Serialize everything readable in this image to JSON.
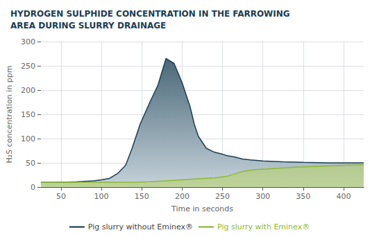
{
  "chart_data": {
    "type": "area",
    "title": "HYDROGEN SULPHIDE CONCENTRATION IN THE FARROWING\nAREA DURING SLURRY DRAINAGE",
    "xlabel": "Time in seconds",
    "ylabel": "H₂S concentration in ppm",
    "xlim": [
      25,
      425
    ],
    "ylim": [
      0,
      300
    ],
    "xticks": [
      50,
      100,
      150,
      200,
      250,
      300,
      350,
      400
    ],
    "yticks": [
      0,
      50,
      100,
      150,
      200,
      250,
      300
    ],
    "grid": true,
    "legend": "bottom",
    "series": [
      {
        "name": "Pig slurry without Eminex®",
        "color": "#1c3d52",
        "x": [
          25,
          55,
          70,
          90,
          100,
          110,
          120,
          130,
          138,
          148,
          160,
          170,
          180,
          190,
          200,
          210,
          215,
          220,
          230,
          240,
          250,
          255,
          265,
          275,
          285,
          300,
          325,
          350,
          380,
          410,
          425
        ],
        "values": [
          10,
          10,
          11,
          13,
          15,
          18,
          28,
          45,
          80,
          130,
          175,
          210,
          265,
          255,
          215,
          165,
          130,
          105,
          80,
          72,
          68,
          65,
          62,
          58,
          56,
          54,
          52,
          51,
          50,
          50,
          50
        ]
      },
      {
        "name": "Pig slurry with Eminex®",
        "color": "#8db832",
        "x": [
          25,
          55,
          70,
          90,
          100,
          120,
          140,
          160,
          180,
          200,
          220,
          240,
          255,
          265,
          275,
          290,
          310,
          340,
          370,
          400,
          425
        ],
        "values": [
          10,
          10,
          10,
          10,
          10,
          10,
          10,
          11,
          13,
          15,
          17,
          19,
          22,
          27,
          32,
          36,
          38,
          41,
          43,
          45,
          46
        ]
      }
    ]
  }
}
